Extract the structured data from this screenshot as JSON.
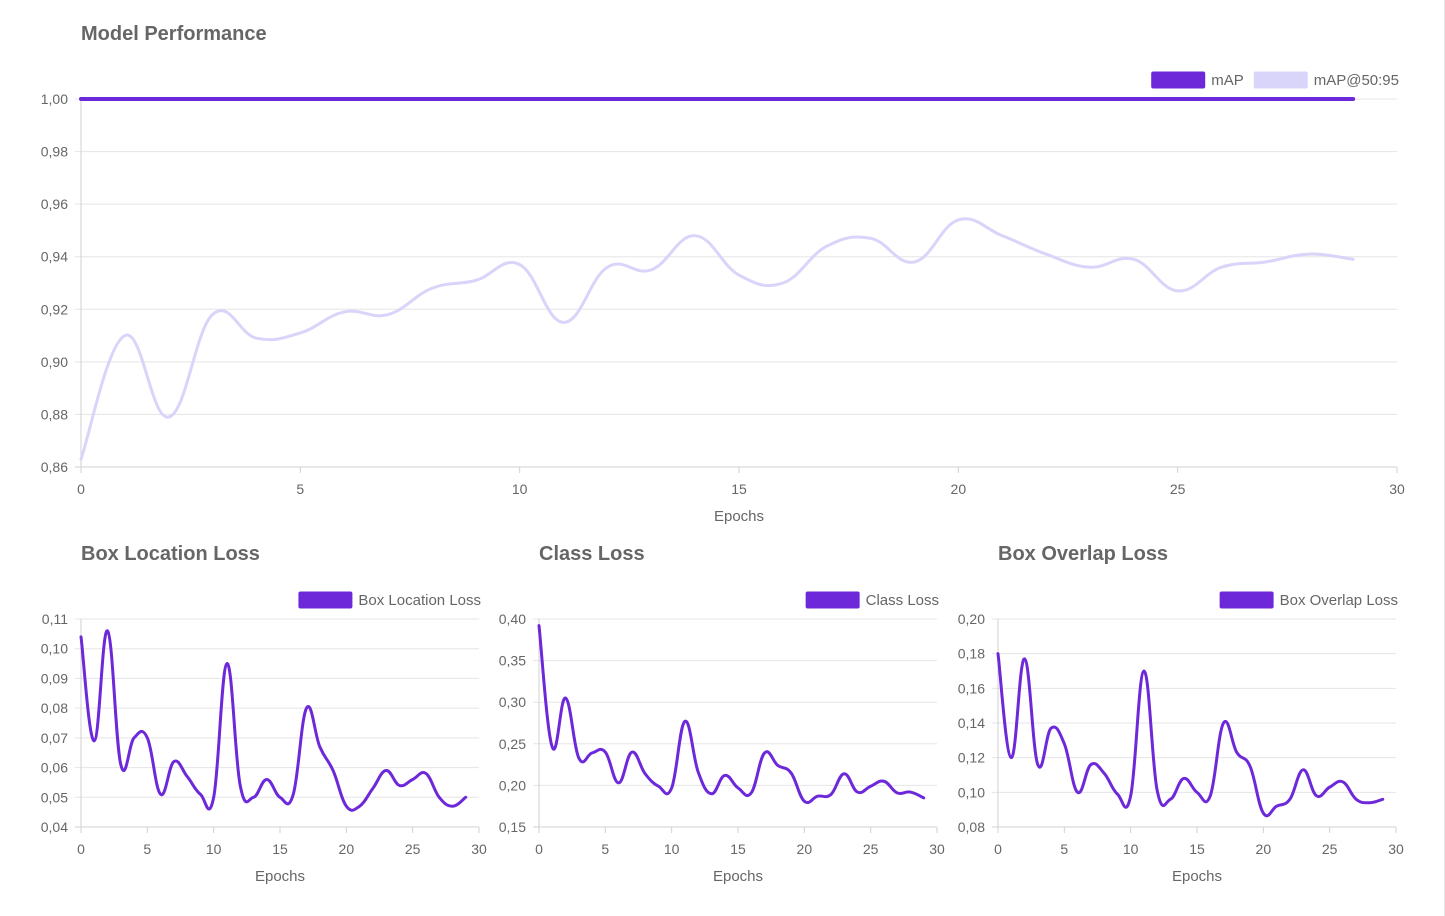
{
  "colors": {
    "primary": "#6d28d9",
    "secondary": "#d9d4fa",
    "text": "#666666"
  },
  "chart_data": [
    {
      "id": "performance",
      "type": "line",
      "title": "Model Performance",
      "xlabel": "Epochs",
      "ylabel": "",
      "xlim": [
        0,
        30
      ],
      "ylim": [
        0.86,
        1.0
      ],
      "xticks": [
        "0",
        "5",
        "10",
        "15",
        "20",
        "25",
        "30"
      ],
      "yticks": [
        "0,86",
        "0,88",
        "0,90",
        "0,92",
        "0,94",
        "0,96",
        "0,98",
        "1,00"
      ],
      "legend_position": "top-right",
      "grid": true,
      "x": [
        0,
        1,
        2,
        3,
        4,
        5,
        6,
        7,
        8,
        9,
        10,
        11,
        12,
        13,
        14,
        15,
        16,
        17,
        18,
        19,
        20,
        21,
        22,
        23,
        24,
        25,
        26,
        27,
        28,
        29
      ],
      "series": [
        {
          "name": "mAP",
          "color": "#6d28d9",
          "values": [
            1.0,
            1.0,
            1.0,
            1.0,
            1.0,
            1.0,
            1.0,
            1.0,
            1.0,
            1.0,
            1.0,
            1.0,
            1.0,
            1.0,
            1.0,
            1.0,
            1.0,
            1.0,
            1.0,
            1.0,
            1.0,
            1.0,
            1.0,
            1.0,
            1.0,
            1.0,
            1.0,
            1.0,
            1.0,
            1.0
          ]
        },
        {
          "name": "mAP@50:95",
          "color": "#d9d4fa",
          "values": [
            0.863,
            0.91,
            0.879,
            0.918,
            0.909,
            0.911,
            0.919,
            0.918,
            0.928,
            0.931,
            0.937,
            0.915,
            0.936,
            0.935,
            0.948,
            0.933,
            0.93,
            0.944,
            0.947,
            0.938,
            0.954,
            0.948,
            0.941,
            0.936,
            0.939,
            0.927,
            0.936,
            0.938,
            0.941,
            0.939
          ]
        }
      ]
    },
    {
      "id": "box-location",
      "type": "line",
      "title": "Box Location Loss",
      "xlabel": "Epochs",
      "ylabel": "",
      "xlim": [
        0,
        30
      ],
      "ylim": [
        0.04,
        0.11
      ],
      "xticks": [
        "0",
        "5",
        "10",
        "15",
        "20",
        "25",
        "30"
      ],
      "yticks": [
        "0,04",
        "0,05",
        "0,06",
        "0,07",
        "0,08",
        "0,09",
        "0,10",
        "0,11"
      ],
      "legend_position": "top-right",
      "grid": true,
      "x": [
        0,
        1,
        2,
        3,
        4,
        5,
        6,
        7,
        8,
        9,
        10,
        11,
        12,
        13,
        14,
        15,
        16,
        17,
        18,
        19,
        20,
        21,
        22,
        23,
        24,
        25,
        26,
        27,
        28,
        29
      ],
      "series": [
        {
          "name": "Box Location Loss",
          "color": "#6d28d9",
          "values": [
            0.104,
            0.069,
            0.106,
            0.061,
            0.07,
            0.07,
            0.051,
            0.062,
            0.057,
            0.051,
            0.05,
            0.095,
            0.054,
            0.05,
            0.056,
            0.05,
            0.051,
            0.08,
            0.067,
            0.059,
            0.047,
            0.047,
            0.053,
            0.059,
            0.054,
            0.056,
            0.058,
            0.05,
            0.047,
            0.05
          ]
        }
      ]
    },
    {
      "id": "class",
      "type": "line",
      "title": "Class Loss",
      "xlabel": "Epochs",
      "ylabel": "",
      "xlim": [
        0,
        30
      ],
      "ylim": [
        0.15,
        0.4
      ],
      "xticks": [
        "0",
        "5",
        "10",
        "15",
        "20",
        "25",
        "30"
      ],
      "yticks": [
        "0,15",
        "0,20",
        "0,25",
        "0,30",
        "0,35",
        "0,40"
      ],
      "legend_position": "top-right",
      "grid": true,
      "x": [
        0,
        1,
        2,
        3,
        4,
        5,
        6,
        7,
        8,
        9,
        10,
        11,
        12,
        13,
        14,
        15,
        16,
        17,
        18,
        19,
        20,
        21,
        22,
        23,
        24,
        25,
        26,
        27,
        28,
        29
      ],
      "series": [
        {
          "name": "Class Loss",
          "color": "#6d28d9",
          "values": [
            0.392,
            0.246,
            0.305,
            0.233,
            0.239,
            0.24,
            0.203,
            0.24,
            0.214,
            0.199,
            0.197,
            0.277,
            0.216,
            0.19,
            0.212,
            0.197,
            0.191,
            0.239,
            0.224,
            0.215,
            0.181,
            0.187,
            0.189,
            0.214,
            0.192,
            0.199,
            0.205,
            0.191,
            0.192,
            0.185
          ]
        }
      ]
    },
    {
      "id": "box-overlap",
      "type": "line",
      "title": "Box Overlap Loss",
      "xlabel": "Epochs",
      "ylabel": "",
      "xlim": [
        0,
        30
      ],
      "ylim": [
        0.08,
        0.2
      ],
      "xticks": [
        "0",
        "5",
        "10",
        "15",
        "20",
        "25",
        "30"
      ],
      "yticks": [
        "0,08",
        "0,10",
        "0,12",
        "0,14",
        "0,16",
        "0,18",
        "0,20"
      ],
      "legend_position": "top-right",
      "grid": true,
      "x": [
        0,
        1,
        2,
        3,
        4,
        5,
        6,
        7,
        8,
        9,
        10,
        11,
        12,
        13,
        14,
        15,
        16,
        17,
        18,
        19,
        20,
        21,
        22,
        23,
        24,
        25,
        26,
        27,
        28,
        29
      ],
      "series": [
        {
          "name": "Box Overlap Loss",
          "color": "#6d28d9",
          "values": [
            0.18,
            0.12,
            0.177,
            0.116,
            0.137,
            0.128,
            0.1,
            0.116,
            0.111,
            0.099,
            0.098,
            0.17,
            0.101,
            0.096,
            0.108,
            0.1,
            0.098,
            0.14,
            0.123,
            0.115,
            0.088,
            0.092,
            0.096,
            0.113,
            0.098,
            0.103,
            0.106,
            0.096,
            0.094,
            0.096
          ]
        }
      ]
    }
  ]
}
